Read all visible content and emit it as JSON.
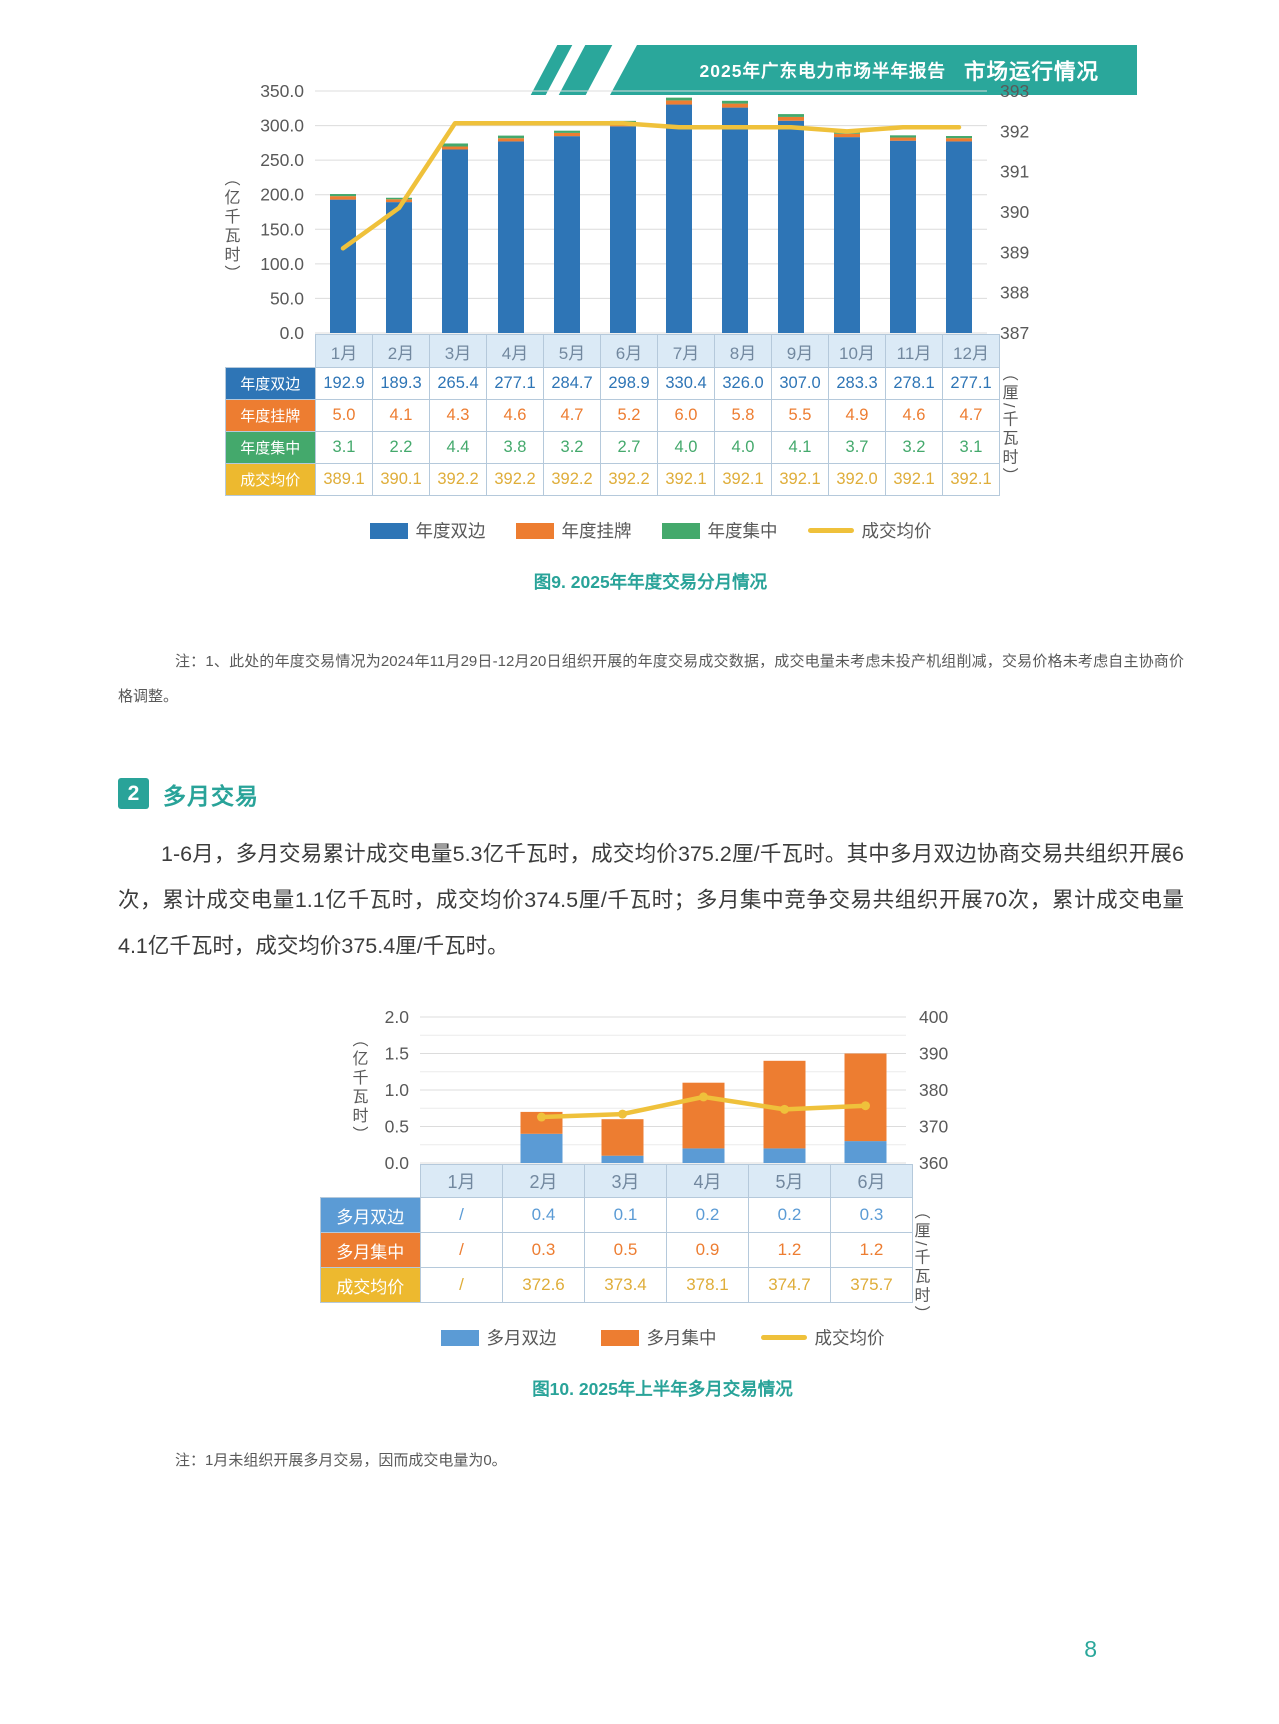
{
  "header": {
    "report_title": "2025年广东电力市场半年报告",
    "section_badge": "市场运行情况",
    "banner_color": "#2AA79B"
  },
  "page_number": "8",
  "section": {
    "number": "2",
    "title": "多月交易",
    "paragraph": "1-6月，多月交易累计成交电量5.3亿千瓦时，成交均价375.2厘/千瓦时。其中多月双边协商交易共组织开展6次，累计成交电量1.1亿千瓦时，成交均价374.5厘/千瓦时；多月集中竞争交易共组织开展70次，累计成交电量4.1亿千瓦时，成交均价375.4厘/千瓦时。"
  },
  "ui_colors": {
    "teal_accent": "#29A399",
    "table_border": "#B5C9DB",
    "month_header_bg": "#DBEAF6",
    "month_header_text": "#72889F",
    "tick_text": "#595959"
  },
  "chart_data": [
    {
      "id": "figure9",
      "type": "stacked-bar+line",
      "title": "图9. 2025年年度交易分月情况",
      "categories": [
        "1月",
        "2月",
        "3月",
        "4月",
        "5月",
        "6月",
        "7月",
        "8月",
        "9月",
        "10月",
        "11月",
        "12月"
      ],
      "bar_series": [
        {
          "name": "年度双边",
          "color": "#2E75B6",
          "values": [
            192.9,
            189.3,
            265.4,
            277.1,
            284.7,
            298.9,
            330.4,
            326.0,
            307.0,
            283.3,
            278.1,
            277.1
          ]
        },
        {
          "name": "年度挂牌",
          "color": "#ED7D31",
          "values": [
            5.0,
            4.1,
            4.3,
            4.6,
            4.7,
            5.2,
            6.0,
            5.8,
            5.5,
            4.9,
            4.6,
            4.7
          ]
        },
        {
          "name": "年度集中",
          "color": "#44A96C",
          "values": [
            3.1,
            2.2,
            4.4,
            3.8,
            3.2,
            2.7,
            4.0,
            4.0,
            4.1,
            3.7,
            3.2,
            3.1
          ]
        }
      ],
      "line_series": {
        "name": "成交均价",
        "color": "#EFC13B",
        "label_color": "#EDB92F",
        "text_color": "#DFAD39",
        "values": [
          389.1,
          390.1,
          392.2,
          392.2,
          392.2,
          392.2,
          392.1,
          392.1,
          392.1,
          392.0,
          392.1,
          392.1
        ]
      },
      "left_axis": {
        "title": "（亿千瓦时）",
        "min": 0,
        "max": 350,
        "step": 50,
        "decimals": 1
      },
      "right_axis": {
        "title": "（厘/千瓦时）",
        "min": 387,
        "max": 393,
        "step": 1,
        "decimals": 0
      },
      "value_decimals": 1,
      "note": "注：1、此处的年度交易情况为2024年11月29日-12月20日组织开展的年度交易成交数据，成交电量未考虑未投产机组削减，交易价格未考虑自主协商价格调整。"
    },
    {
      "id": "figure10",
      "type": "stacked-bar+line",
      "title": "图10. 2025年上半年多月交易情况",
      "categories": [
        "1月",
        "2月",
        "3月",
        "4月",
        "5月",
        "6月"
      ],
      "bar_series": [
        {
          "name": "多月双边",
          "color": "#5B9BD5",
          "values": [
            null,
            0.4,
            0.1,
            0.2,
            0.2,
            0.3
          ]
        },
        {
          "name": "多月集中",
          "color": "#ED7D31",
          "values": [
            null,
            0.3,
            0.5,
            0.9,
            1.2,
            1.2
          ]
        }
      ],
      "line_series": {
        "name": "成交均价",
        "color": "#EFC13B",
        "label_color": "#EDB92F",
        "text_color": "#DFAD39",
        "values": [
          null,
          372.6,
          373.4,
          378.1,
          374.7,
          375.7
        ]
      },
      "left_axis": {
        "title": "（亿千瓦时）",
        "min": 0,
        "max": 2,
        "step": 0.5,
        "decimals": 1
      },
      "right_axis": {
        "title": "（厘/千瓦时）",
        "min": 360,
        "max": 400,
        "step": 10,
        "decimals": 0
      },
      "value_decimals": 1,
      "note": "注：1月未组织开展多月交易，因而成交电量为0。"
    }
  ]
}
